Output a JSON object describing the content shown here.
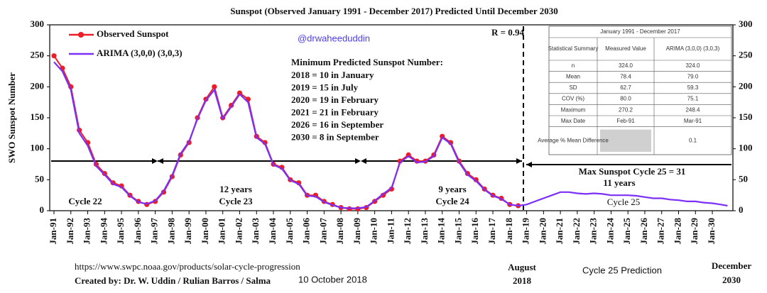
{
  "chart_data": {
    "type": "line",
    "title": "Sunspot (Observed January 1991 - December 2017) Predicted Until December 2030",
    "y_label": "SWO Sunspot Number",
    "watermark": "@drwaheeduddin",
    "r_label": "R = 0.94",
    "minimum_title": "Minimum Predicted Sunspot Number:",
    "minimum_lines": [
      "2018 = 10 in January",
      "2019 = 15 in July",
      "2020 = 19 in February",
      "2021 = 21 in February",
      "2026 = 16 in September",
      "2030 = 8 in September"
    ],
    "cycle_labels": [
      "Cycle 22",
      "12 years",
      "Cycle 23",
      "9 years",
      "Cycle 24",
      "Max Sunspot Cycle 25 = 31",
      "11 years",
      "Cycle 25"
    ],
    "footer": {
      "url": "https://www.swpc.noaa.gov/products/solar-cycle-progression",
      "credit": "Created by: Dr. W. Uddin / Rulian Barros / Salma",
      "date": "10 October 2018",
      "start": [
        "August",
        "2018"
      ],
      "prediction": "Cycle 25 Prediction",
      "end": [
        "December",
        "2030"
      ]
    },
    "xlim": [
      1991,
      2031
    ],
    "xticks": [
      {
        "value": 1991,
        "label": "Jan-91"
      },
      {
        "value": 1992,
        "label": "Jan-92"
      },
      {
        "value": 1993,
        "label": "Jan-93"
      },
      {
        "value": 1994,
        "label": "Jan-94"
      },
      {
        "value": 1995,
        "label": "Jan-95"
      },
      {
        "value": 1996,
        "label": "Jan-96"
      },
      {
        "value": 1997,
        "label": "Jan-97"
      },
      {
        "value": 1998,
        "label": "Jan-98"
      },
      {
        "value": 1999,
        "label": "Jan-99"
      },
      {
        "value": 2000,
        "label": "Jan-00"
      },
      {
        "value": 2001,
        "label": "Jan-01"
      },
      {
        "value": 2002,
        "label": "Jan-02"
      },
      {
        "value": 2003,
        "label": "Jan-03"
      },
      {
        "value": 2004,
        "label": "Jan-04"
      },
      {
        "value": 2005,
        "label": "Jan-05"
      },
      {
        "value": 2006,
        "label": "Jan-06"
      },
      {
        "value": 2007,
        "label": "Jan-07"
      },
      {
        "value": 2008,
        "label": "Jan-08"
      },
      {
        "value": 2009,
        "label": "Jan-09"
      },
      {
        "value": 2010,
        "label": "Jan-10"
      },
      {
        "value": 2011,
        "label": "Jan-11"
      },
      {
        "value": 2012,
        "label": "Jan-12"
      },
      {
        "value": 2013,
        "label": "Jan-13"
      },
      {
        "value": 2014,
        "label": "Jan-14"
      },
      {
        "value": 2015,
        "label": "Jan-15"
      },
      {
        "value": 2016,
        "label": "Jan-16"
      },
      {
        "value": 2017,
        "label": "Jan-17"
      },
      {
        "value": 2018,
        "label": "Jan-18"
      },
      {
        "value": 2019,
        "label": "Jan-19"
      },
      {
        "value": 2020,
        "label": "Jan-20"
      },
      {
        "value": 2021,
        "label": "Jan-21"
      },
      {
        "value": 2022,
        "label": "Jan-22"
      },
      {
        "value": 2023,
        "label": "Jan-23"
      },
      {
        "value": 2024,
        "label": "Jan-24"
      },
      {
        "value": 2025,
        "label": "Jan-25"
      },
      {
        "value": 2026,
        "label": "Jan-26"
      },
      {
        "value": 2027,
        "label": "Jan-27"
      },
      {
        "value": 2028,
        "label": "Jan-28"
      },
      {
        "value": 2029,
        "label": "Jan-29"
      },
      {
        "value": 2030,
        "label": "Jan-30"
      }
    ],
    "ylim": [
      0,
      300
    ],
    "yticks": [
      0,
      50,
      100,
      150,
      200,
      250,
      300
    ],
    "y2lim": [
      0,
      300
    ],
    "y2ticks": [
      0,
      50,
      100,
      150,
      200,
      250,
      300
    ],
    "series": [
      {
        "name": "Observed Sunspot",
        "color": "#ee1c25",
        "markers": true,
        "x": [
          1991,
          1991.5,
          1992,
          1992.5,
          1993,
          1993.5,
          1994,
          1994.5,
          1995,
          1995.5,
          1996,
          1996.5,
          1997,
          1997.5,
          1998,
          1998.5,
          1999,
          1999.5,
          2000,
          2000.5,
          2001,
          2001.5,
          2002,
          2002.5,
          2003,
          2003.5,
          2004,
          2004.5,
          2005,
          2005.5,
          2006,
          2006.5,
          2007,
          2007.5,
          2008,
          2008.5,
          2009,
          2009.5,
          2010,
          2010.5,
          2011,
          2011.5,
          2012,
          2012.5,
          2013,
          2013.5,
          2014,
          2014.5,
          2015,
          2015.5,
          2016,
          2016.5,
          2017,
          2017.5,
          2018,
          2018.5
        ],
        "values": [
          250,
          230,
          200,
          130,
          110,
          75,
          60,
          45,
          40,
          25,
          15,
          10,
          15,
          30,
          55,
          90,
          110,
          150,
          180,
          200,
          150,
          170,
          190,
          180,
          120,
          110,
          75,
          70,
          50,
          45,
          25,
          25,
          15,
          10,
          5,
          3,
          3,
          5,
          15,
          25,
          35,
          80,
          90,
          80,
          80,
          90,
          120,
          110,
          80,
          60,
          50,
          35,
          25,
          20,
          10,
          8
        ]
      },
      {
        "name": "ARIMA (3,0,0) (3,0,3)",
        "color": "#7b2ff7",
        "markers": false,
        "x": [
          1991,
          1991.5,
          1992,
          1992.5,
          1993,
          1993.5,
          1994,
          1994.5,
          1995,
          1995.5,
          1996,
          1996.5,
          1997,
          1997.5,
          1998,
          1998.5,
          1999,
          1999.5,
          2000,
          2000.5,
          2001,
          2001.5,
          2002,
          2002.5,
          2003,
          2003.5,
          2004,
          2004.5,
          2005,
          2005.5,
          2006,
          2006.5,
          2007,
          2007.5,
          2008,
          2008.5,
          2009,
          2009.5,
          2010,
          2010.5,
          2011,
          2011.5,
          2012,
          2012.5,
          2013,
          2013.5,
          2014,
          2014.5,
          2015,
          2015.5,
          2016,
          2016.5,
          2017,
          2017.5,
          2018,
          2018.5,
          2019,
          2019.5,
          2020,
          2020.5,
          2021,
          2021.5,
          2022,
          2022.5,
          2023,
          2023.5,
          2024,
          2024.5,
          2025,
          2025.5,
          2026,
          2026.5,
          2027,
          2027.5,
          2028,
          2028.5,
          2029,
          2029.5,
          2030,
          2030.5,
          2030.9
        ],
        "values": [
          240,
          225,
          195,
          125,
          105,
          72,
          58,
          43,
          38,
          24,
          14,
          11,
          16,
          32,
          57,
          92,
          112,
          148,
          178,
          195,
          148,
          168,
          188,
          175,
          118,
          108,
          74,
          68,
          49,
          43,
          24,
          23,
          14,
          9,
          5,
          4,
          4,
          6,
          16,
          27,
          37,
          78,
          88,
          78,
          79,
          88,
          118,
          108,
          78,
          58,
          48,
          34,
          24,
          19,
          10,
          8,
          10,
          15,
          20,
          25,
          30,
          30,
          28,
          27,
          28,
          27,
          25,
          25,
          25,
          24,
          22,
          20,
          20,
          18,
          17,
          15,
          15,
          13,
          12,
          10,
          8
        ]
      }
    ],
    "table": {
      "title": "January 1991 - December 2017",
      "columns": [
        "Statistical Summary",
        "Measured Value",
        "ARIMA (3,0,0) (3,0,3)"
      ],
      "rows": [
        [
          "n",
          "324.0",
          "324.0"
        ],
        [
          "Mean",
          "78.4",
          "79.0"
        ],
        [
          "SD",
          "62.7",
          "59.3"
        ],
        [
          "COV (%)",
          "80.0",
          "75.1"
        ],
        [
          "Maximum",
          "270.2",
          "248.4"
        ],
        [
          "Max Date",
          "Feb-91",
          "Mar-91"
        ],
        [
          "Average % Mean Difference",
          "",
          "0.1"
        ]
      ]
    }
  }
}
